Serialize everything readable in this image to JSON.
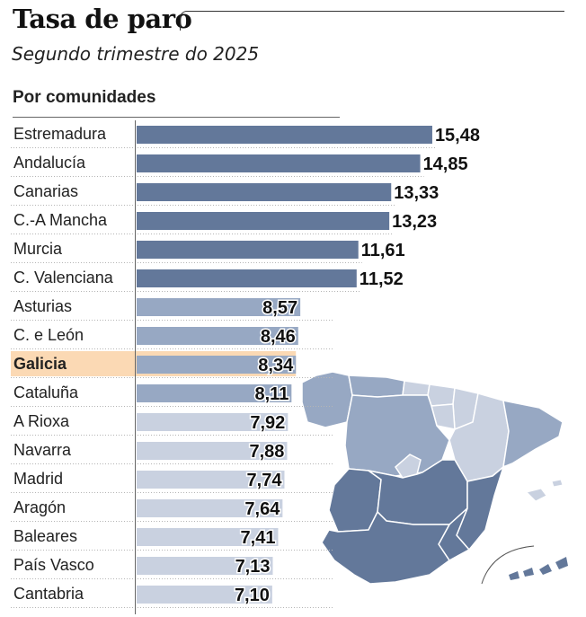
{
  "chart_data": {
    "type": "bar",
    "orientation": "horizontal",
    "title": "Tasa de paro",
    "subtitle": "Segundo trimestre do 2025",
    "section_label": "Por comunidades",
    "highlight": "Galicia",
    "categories": [
      "Estremadura",
      "Andalucía",
      "Canarias",
      "C.-A Mancha",
      "Murcia",
      "C. Valenciana",
      "Asturias",
      "C. e León",
      "Galicia",
      "Cataluña",
      "A Rioxa",
      "Navarra",
      "Madrid",
      "Aragón",
      "Baleares",
      "País Vasco",
      "Cantabria"
    ],
    "values": [
      15.48,
      14.85,
      13.33,
      13.23,
      11.61,
      11.52,
      8.57,
      8.46,
      8.34,
      8.11,
      7.92,
      7.88,
      7.74,
      7.64,
      7.41,
      7.13,
      7.1
    ],
    "value_labels": [
      "15,48",
      "14,85",
      "13,33",
      "13,23",
      "11,61",
      "11,52",
      "8,57",
      "8,46",
      "8,34",
      "8,11",
      "7,92",
      "7,88",
      "7,74",
      "7,64",
      "7,41",
      "7,13",
      "7,10"
    ],
    "xlim": [
      0,
      16
    ]
  },
  "colors": {
    "dark": "#63789a",
    "mid": "#97a8c3",
    "light": "#c9d1e0",
    "highlight_bg": "#fbd9b4"
  }
}
